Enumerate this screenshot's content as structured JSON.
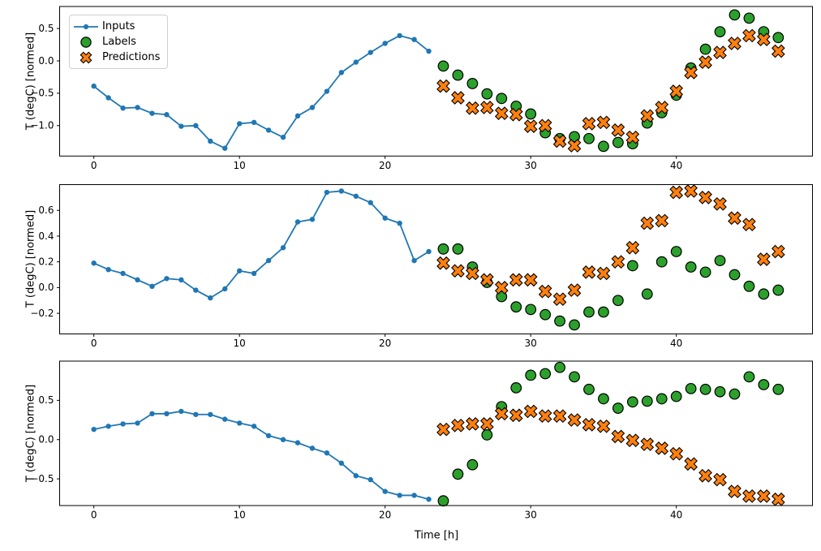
{
  "figure": {
    "background": "#ffffff",
    "legend": {
      "position": "upper-left",
      "items": [
        {
          "label": "Inputs"
        },
        {
          "label": "Labels"
        },
        {
          "label": "Predictions"
        }
      ]
    }
  },
  "chart_data": [
    {
      "type": "line",
      "title": "",
      "xlabel": "",
      "ylabel": "T (degC) [normed]",
      "xlim": [
        -2.35,
        49.35
      ],
      "ylim": [
        -1.47,
        0.84
      ],
      "xticks": [
        0,
        10,
        20,
        30,
        40
      ],
      "yticks": [
        0.5,
        0.0,
        -0.5,
        -1.0
      ],
      "grid": false,
      "series": [
        {
          "name": "Inputs",
          "mode": "line+markers",
          "marker": "dot",
          "color": "#1f77b4",
          "x": [
            0,
            1,
            2,
            3,
            4,
            5,
            6,
            7,
            8,
            9,
            10,
            11,
            12,
            13,
            14,
            15,
            16,
            17,
            18,
            19,
            20,
            21,
            22,
            23
          ],
          "y": [
            -0.39,
            -0.57,
            -0.73,
            -0.72,
            -0.81,
            -0.83,
            -1.01,
            -1.0,
            -1.24,
            -1.35,
            -0.97,
            -0.95,
            -1.07,
            -1.18,
            -0.85,
            -0.72,
            -0.47,
            -0.18,
            -0.02,
            0.13,
            0.27,
            0.39,
            0.33,
            0.15
          ]
        },
        {
          "name": "Labels",
          "mode": "markers",
          "marker": "circle",
          "color": "#2ca02c",
          "edge": "#000000",
          "x": [
            24,
            25,
            26,
            27,
            28,
            29,
            30,
            31,
            32,
            33,
            34,
            35,
            36,
            37,
            38,
            39,
            40,
            41,
            42,
            43,
            44,
            45,
            46,
            47
          ],
          "y": [
            -0.08,
            -0.22,
            -0.35,
            -0.51,
            -0.58,
            -0.7,
            -0.82,
            -1.11,
            -1.2,
            -1.17,
            -1.2,
            -1.32,
            -1.26,
            -1.28,
            -0.96,
            -0.8,
            -0.53,
            -0.11,
            0.18,
            0.45,
            0.71,
            0.66,
            0.45,
            0.36
          ]
        },
        {
          "name": "Predictions",
          "mode": "markers",
          "marker": "X",
          "color": "#ff7f0e",
          "edge": "#000000",
          "x": [
            24,
            25,
            26,
            27,
            28,
            29,
            30,
            31,
            32,
            33,
            34,
            35,
            36,
            37,
            38,
            39,
            40,
            41,
            42,
            43,
            44,
            45,
            46,
            47
          ],
          "y": [
            -0.39,
            -0.57,
            -0.73,
            -0.72,
            -0.81,
            -0.83,
            -1.01,
            -1.0,
            -1.24,
            -1.31,
            -0.97,
            -0.95,
            -1.07,
            -1.18,
            -0.85,
            -0.72,
            -0.47,
            -0.18,
            -0.02,
            0.13,
            0.27,
            0.39,
            0.33,
            0.15
          ]
        }
      ]
    },
    {
      "type": "line",
      "title": "",
      "xlabel": "",
      "ylabel": "T (degC) [normed]",
      "xlim": [
        -2.35,
        49.35
      ],
      "ylim": [
        -0.36,
        0.8
      ],
      "xticks": [
        0,
        10,
        20,
        30,
        40
      ],
      "yticks": [
        0.6,
        0.4,
        0.2,
        0.0,
        -0.2
      ],
      "grid": false,
      "series": [
        {
          "name": "Inputs",
          "mode": "line+markers",
          "marker": "dot",
          "color": "#1f77b4",
          "x": [
            0,
            1,
            2,
            3,
            4,
            5,
            6,
            7,
            8,
            9,
            10,
            11,
            12,
            13,
            14,
            15,
            16,
            17,
            18,
            19,
            20,
            21,
            22,
            23
          ],
          "y": [
            0.19,
            0.14,
            0.11,
            0.06,
            0.01,
            0.07,
            0.06,
            -0.02,
            -0.08,
            -0.01,
            0.13,
            0.11,
            0.21,
            0.31,
            0.51,
            0.53,
            0.74,
            0.75,
            0.71,
            0.66,
            0.54,
            0.5,
            0.21,
            0.28
          ]
        },
        {
          "name": "Labels",
          "mode": "markers",
          "marker": "circle",
          "color": "#2ca02c",
          "edge": "#000000",
          "x": [
            24,
            25,
            26,
            27,
            28,
            29,
            30,
            31,
            32,
            33,
            34,
            35,
            36,
            37,
            38,
            39,
            40,
            41,
            42,
            43,
            44,
            45,
            46,
            47
          ],
          "y": [
            0.3,
            0.3,
            0.16,
            0.04,
            -0.07,
            -0.15,
            -0.17,
            -0.21,
            -0.26,
            -0.29,
            -0.19,
            -0.19,
            -0.1,
            0.17,
            -0.05,
            0.2,
            0.28,
            0.16,
            0.12,
            0.21,
            0.1,
            0.01,
            -0.05,
            -0.02
          ]
        },
        {
          "name": "Predictions",
          "mode": "markers",
          "marker": "X",
          "color": "#ff7f0e",
          "edge": "#000000",
          "x": [
            24,
            25,
            26,
            27,
            28,
            29,
            30,
            31,
            32,
            33,
            34,
            35,
            36,
            37,
            38,
            39,
            40,
            41,
            42,
            43,
            44,
            45,
            46,
            47
          ],
          "y": [
            0.19,
            0.13,
            0.11,
            0.06,
            0.0,
            0.06,
            0.06,
            -0.03,
            -0.09,
            -0.02,
            0.12,
            0.11,
            0.2,
            0.31,
            0.5,
            0.52,
            0.74,
            0.75,
            0.7,
            0.65,
            0.54,
            0.49,
            0.22,
            0.28
          ]
        }
      ]
    },
    {
      "type": "line",
      "title": "",
      "xlabel": "Time [h]",
      "ylabel": "T (degC) [normed]",
      "xlim": [
        -2.35,
        49.35
      ],
      "ylim": [
        -0.84,
        1.0
      ],
      "xticks": [
        0,
        10,
        20,
        30,
        40
      ],
      "yticks": [
        0.5,
        0.0,
        -0.5
      ],
      "grid": false,
      "series": [
        {
          "name": "Inputs",
          "mode": "line+markers",
          "marker": "dot",
          "color": "#1f77b4",
          "x": [
            0,
            1,
            2,
            3,
            4,
            5,
            6,
            7,
            8,
            9,
            10,
            11,
            12,
            13,
            14,
            15,
            16,
            17,
            18,
            19,
            20,
            21,
            22,
            23
          ],
          "y": [
            0.13,
            0.17,
            0.2,
            0.21,
            0.33,
            0.33,
            0.36,
            0.32,
            0.32,
            0.26,
            0.21,
            0.17,
            0.05,
            0.0,
            -0.04,
            -0.11,
            -0.17,
            -0.3,
            -0.46,
            -0.51,
            -0.66,
            -0.71,
            -0.71,
            -0.76
          ]
        },
        {
          "name": "Labels",
          "mode": "markers",
          "marker": "circle",
          "color": "#2ca02c",
          "edge": "#000000",
          "x": [
            24,
            25,
            26,
            27,
            28,
            29,
            30,
            31,
            32,
            33,
            34,
            35,
            36,
            37,
            38,
            39,
            40,
            41,
            42,
            43,
            44,
            45,
            46,
            47
          ],
          "y": [
            -0.78,
            -0.44,
            -0.32,
            0.06,
            0.42,
            0.66,
            0.82,
            0.84,
            0.92,
            0.8,
            0.64,
            0.52,
            0.4,
            0.48,
            0.49,
            0.52,
            0.55,
            0.65,
            0.64,
            0.61,
            0.58,
            0.8,
            0.7,
            0.64
          ]
        },
        {
          "name": "Predictions",
          "mode": "markers",
          "marker": "X",
          "color": "#ff7f0e",
          "edge": "#000000",
          "x": [
            24,
            25,
            26,
            27,
            28,
            29,
            30,
            31,
            32,
            33,
            34,
            35,
            36,
            37,
            38,
            39,
            40,
            41,
            42,
            43,
            44,
            45,
            46,
            47
          ],
          "y": [
            0.13,
            0.18,
            0.2,
            0.2,
            0.33,
            0.31,
            0.36,
            0.3,
            0.3,
            0.25,
            0.19,
            0.17,
            0.04,
            -0.01,
            -0.06,
            -0.11,
            -0.18,
            -0.31,
            -0.46,
            -0.51,
            -0.66,
            -0.72,
            -0.72,
            -0.76
          ]
        }
      ]
    }
  ]
}
